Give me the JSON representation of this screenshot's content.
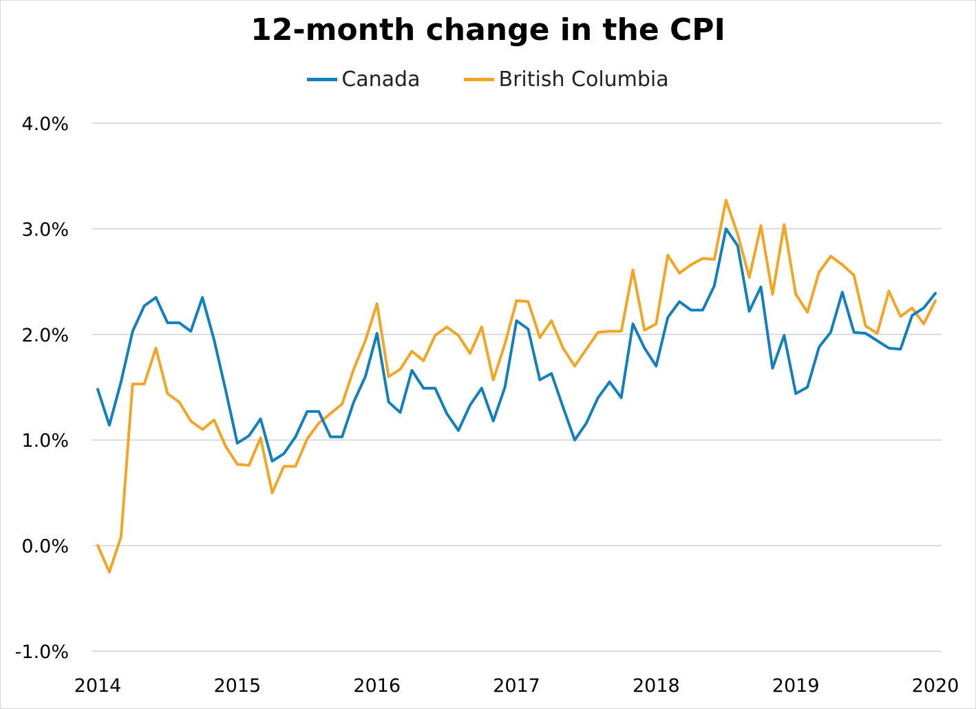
{
  "chart_data": {
    "type": "line",
    "title": "12-month change in the CPI",
    "x_tick_labels": [
      "2014",
      "2015",
      "2016",
      "2017",
      "2018",
      "2019",
      "2020"
    ],
    "y_tick_labels": [
      "-1.0%",
      "0.0%",
      "1.0%",
      "2.0%",
      "3.0%",
      "4.0%"
    ],
    "ylim": [
      -1.0,
      4.0
    ],
    "xlim": [
      "2014-01",
      "2020-01"
    ],
    "grid": true,
    "legend_position": "top-center",
    "series": [
      {
        "name": "Canada",
        "color": "#1380BE",
        "values": [
          1.48,
          1.14,
          1.55,
          2.03,
          2.27,
          2.35,
          2.11,
          2.11,
          2.03,
          2.35,
          1.95,
          1.47,
          0.97,
          1.04,
          1.2,
          0.8,
          0.87,
          1.03,
          1.27,
          1.27,
          1.03,
          1.03,
          1.36,
          1.6,
          2.01,
          1.36,
          1.26,
          1.66,
          1.49,
          1.49,
          1.25,
          1.09,
          1.33,
          1.49,
          1.18,
          1.5,
          2.13,
          2.05,
          1.57,
          1.63,
          1.31,
          1.0,
          1.16,
          1.4,
          1.55,
          1.4,
          2.1,
          1.87,
          1.7,
          2.16,
          2.31,
          2.23,
          2.23,
          2.46,
          3.0,
          2.84,
          2.22,
          2.45,
          1.68,
          1.99,
          1.44,
          1.5,
          1.88,
          2.02,
          2.4,
          2.02,
          2.01,
          1.94,
          1.87,
          1.86,
          2.18,
          2.25,
          2.39
        ]
      },
      {
        "name": "British Columbia",
        "color": "#F3A523",
        "values": [
          0.0,
          -0.25,
          0.08,
          1.53,
          1.53,
          1.87,
          1.44,
          1.36,
          1.18,
          1.1,
          1.19,
          0.94,
          0.77,
          0.76,
          1.02,
          0.5,
          0.75,
          0.75,
          1.01,
          1.16,
          1.25,
          1.34,
          1.67,
          1.94,
          2.29,
          1.6,
          1.67,
          1.84,
          1.75,
          1.99,
          2.07,
          1.99,
          1.82,
          2.07,
          1.57,
          1.91,
          2.32,
          2.31,
          1.97,
          2.13,
          1.87,
          1.7,
          1.86,
          2.02,
          2.03,
          2.03,
          2.61,
          2.04,
          2.1,
          2.75,
          2.58,
          2.66,
          2.72,
          2.71,
          3.27,
          2.95,
          2.54,
          3.03,
          2.38,
          3.04,
          2.38,
          2.21,
          2.59,
          2.74,
          2.66,
          2.56,
          2.08,
          2.01,
          2.41,
          2.17,
          2.25,
          2.1,
          2.32
        ]
      }
    ]
  }
}
